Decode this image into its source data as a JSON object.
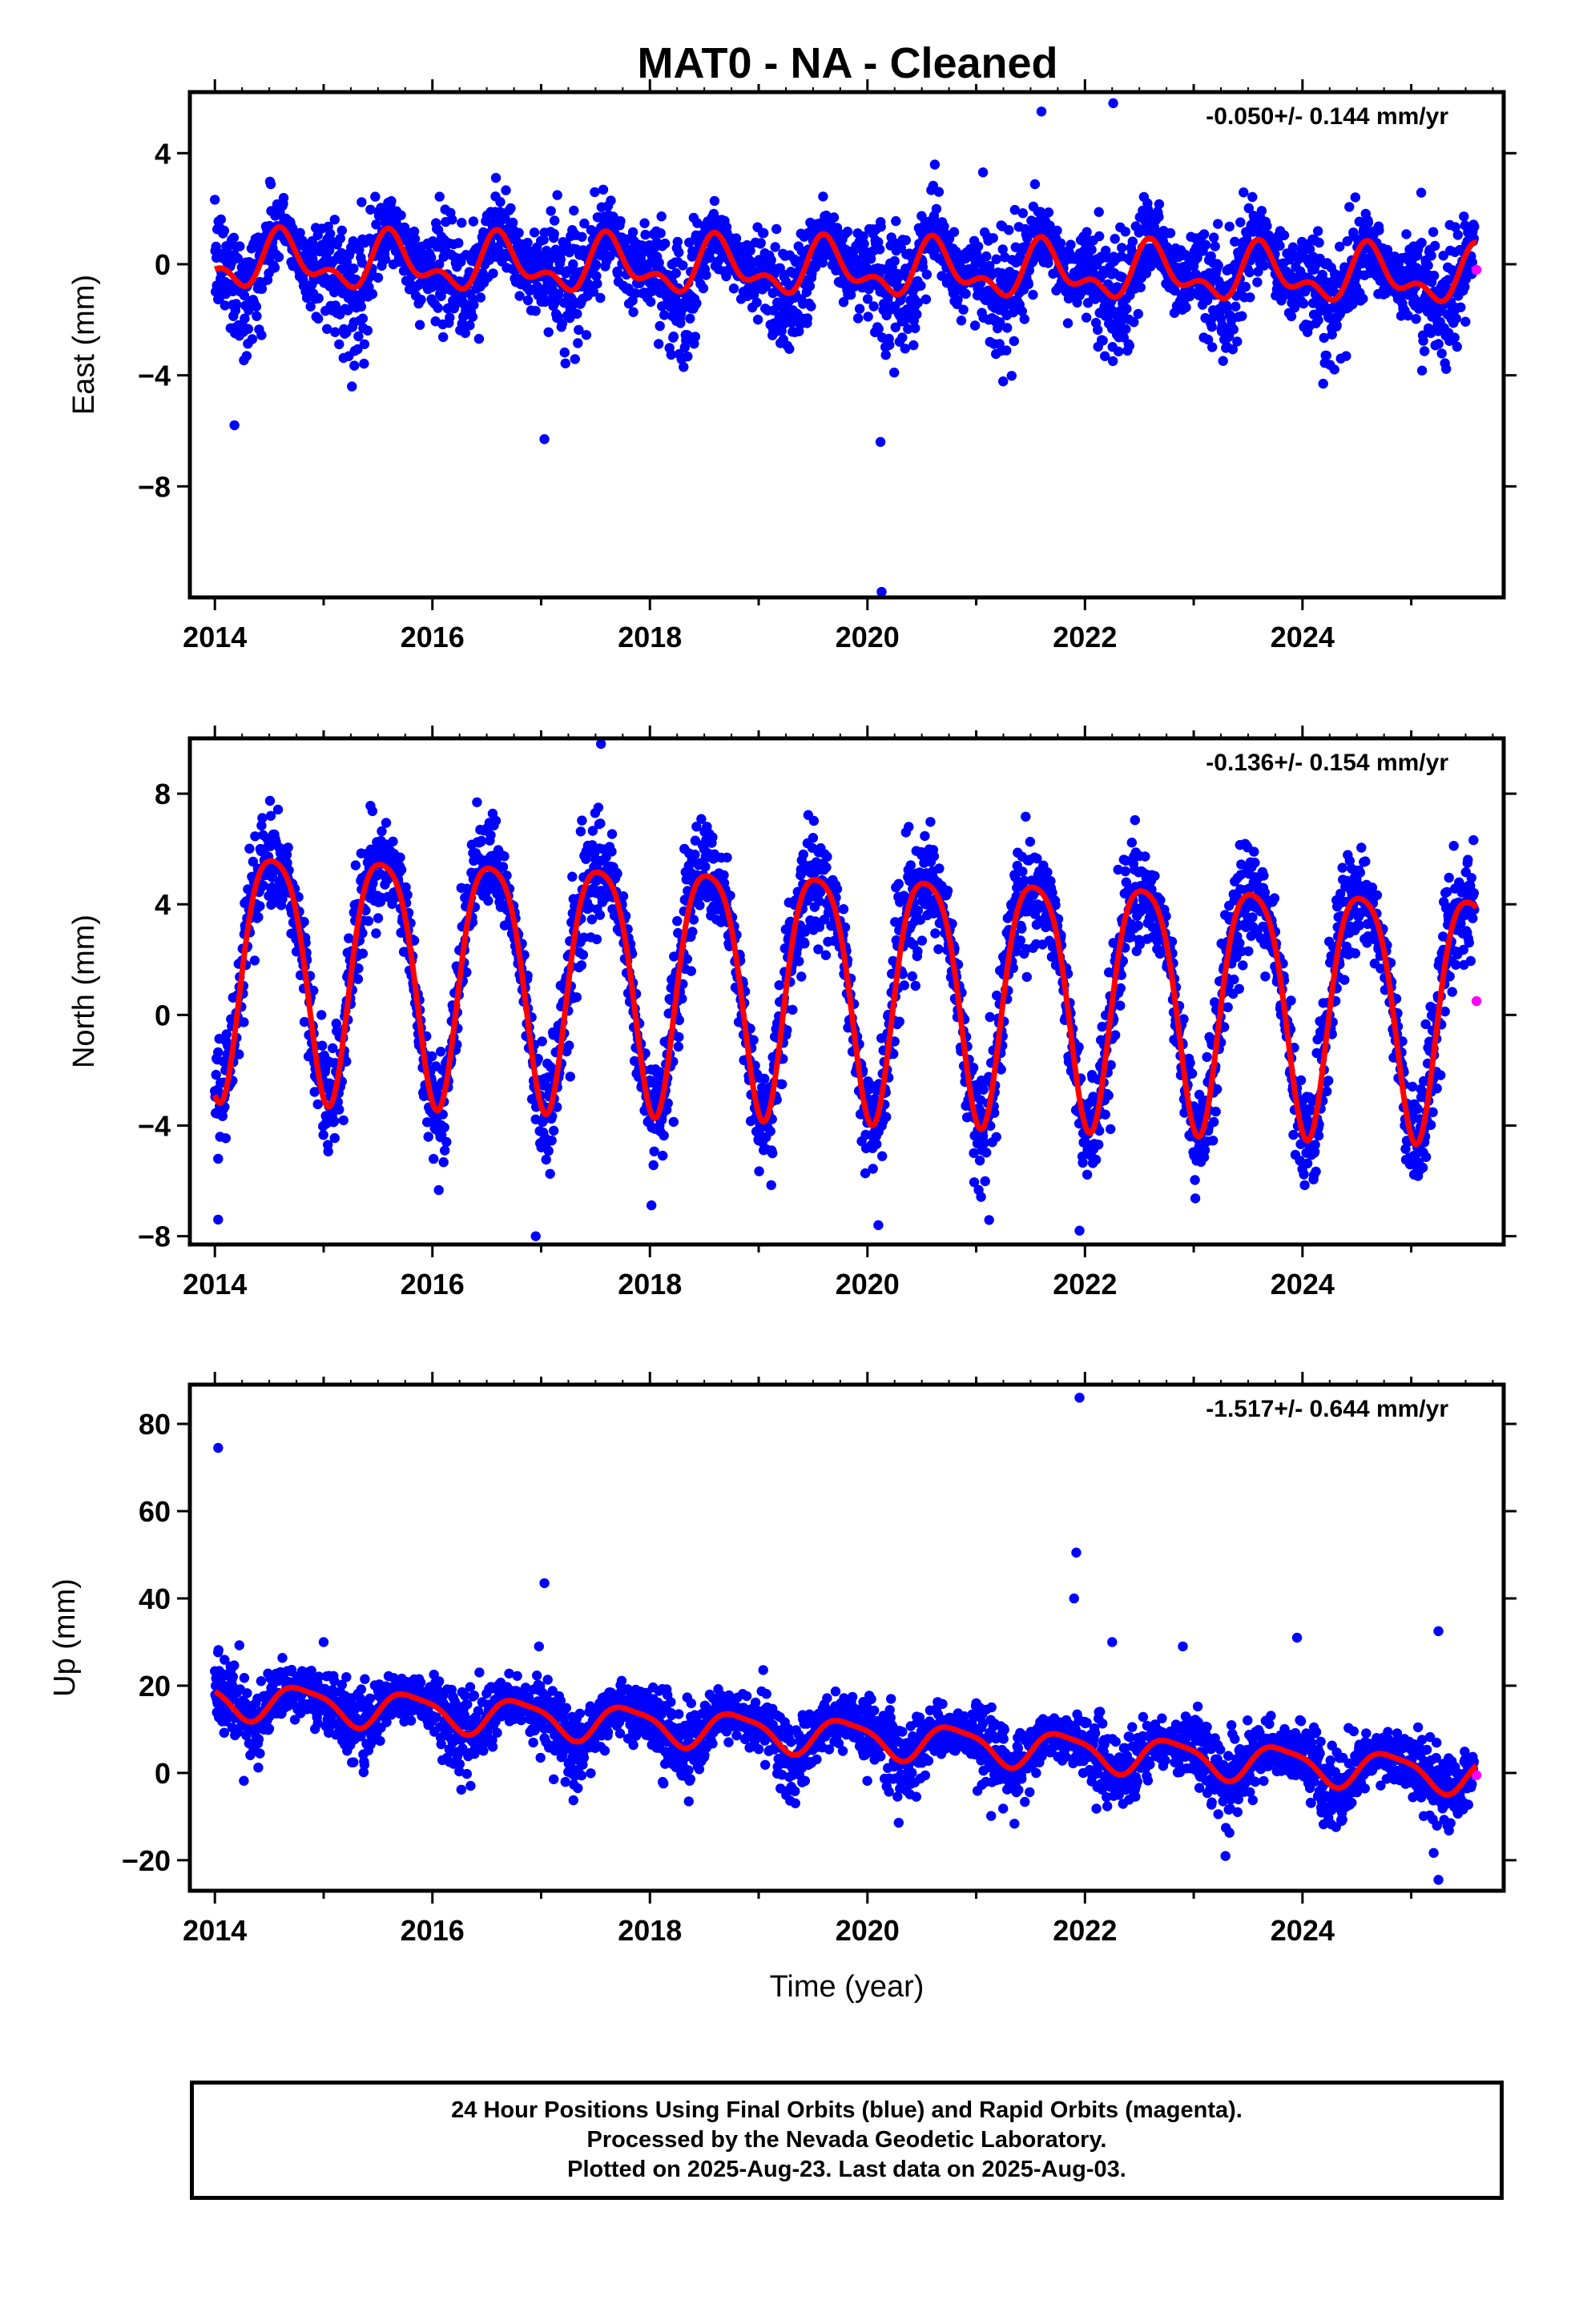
{
  "title": "MAT0  - NA - Cleaned",
  "colors": {
    "final": "#0000ff",
    "rapid": "#ff00ff",
    "model": "#ff0000",
    "frame": "#000000"
  },
  "footer": {
    "line1": "24 Hour Positions Using Final Orbits (blue) and Rapid Orbits (magenta).",
    "line2": "Processed by the Nevada Geodetic Laboratory.",
    "line3": "Plotted on 2025-Aug-23. Last data on 2025-Aug-03."
  },
  "chart_data": [
    {
      "type": "scatter",
      "component": "east",
      "ylabel": "East (mm)",
      "xlabel": "",
      "xlim": [
        2013.77,
        2025.85
      ],
      "ylim": [
        -12.0,
        6.2
      ],
      "xticks": [
        2014,
        2016,
        2018,
        2020,
        2022,
        2024
      ],
      "yticks": [
        4,
        0,
        -4,
        -8
      ],
      "ytick_labels": [
        "4",
        "0",
        "−4",
        "−8"
      ],
      "rate_text": "-0.050+/- 0.144 mm/yr",
      "model": {
        "offset": -0.2,
        "rate": -0.05,
        "amp1": 0.8,
        "amp2": 0.5,
        "phase1": 0.63,
        "phase2": 0.58
      },
      "scatter": {
        "sigma": 1.0,
        "seasonal": 1.2
      },
      "outliers": [
        [
          2014.18,
          -5.8
        ],
        [
          2017.03,
          -6.3
        ],
        [
          2020.12,
          -6.4
        ],
        [
          2020.13,
          -11.8
        ],
        [
          2022.26,
          5.8
        ],
        [
          2021.6,
          5.5
        ]
      ],
      "rapid_points": [
        [
          2025.6,
          -0.2
        ]
      ],
      "legend": "none"
    },
    {
      "type": "scatter",
      "component": "north",
      "ylabel": "North (mm)",
      "xlabel": "",
      "xlim": [
        2013.77,
        2025.85
      ],
      "ylim": [
        -8.3,
        10.0
      ],
      "xticks": [
        2014,
        2016,
        2018,
        2020,
        2022,
        2024
      ],
      "yticks": [
        8,
        4,
        0,
        -4,
        -8
      ],
      "ytick_labels": [
        "8",
        "4",
        "0",
        "−4",
        "−8"
      ],
      "rate_text": "-0.136+/- 0.154 mm/yr",
      "model": {
        "offset": 1.2,
        "rate": -0.136,
        "amp1": 4.4,
        "amp2": 0.8,
        "phase1": 0.54,
        "phase2": 0.3
      },
      "scatter": {
        "sigma": 1.1,
        "seasonal": 0.0
      },
      "outliers": [
        [
          2014.03,
          -7.4
        ],
        [
          2014.03,
          -5.2
        ],
        [
          2016.95,
          -8.0
        ],
        [
          2017.55,
          9.8
        ],
        [
          2020.1,
          -7.6
        ],
        [
          2021.95,
          -7.8
        ]
      ],
      "rapid_points": [
        [
          2025.6,
          0.5
        ]
      ],
      "legend": "none"
    },
    {
      "type": "scatter",
      "component": "up",
      "ylabel": "Up (mm)",
      "xlabel": "Time (year)",
      "xlim": [
        2013.77,
        2025.85
      ],
      "ylim": [
        -27.0,
        89.0
      ],
      "xticks": [
        2014,
        2016,
        2018,
        2020,
        2022,
        2024
      ],
      "yticks": [
        80,
        60,
        40,
        20,
        0,
        -20
      ],
      "ytick_labels": [
        "80",
        "60",
        "40",
        "20",
        "0",
        "−20"
      ],
      "rate_text": "-1.517+/- 0.644 mm/yr",
      "model": {
        "offset": 8.0,
        "rate": -1.517,
        "amp1": 4.0,
        "amp2": 1.0,
        "phase1": 0.8,
        "phase2": 0.6
      },
      "scatter": {
        "sigma": 4.3,
        "seasonal": 0.0
      },
      "outliers": [
        [
          2014.03,
          74.5
        ],
        [
          2017.03,
          43.5
        ],
        [
          2016.98,
          29.0
        ],
        [
          2021.95,
          86.0
        ],
        [
          2021.92,
          50.5
        ],
        [
          2021.9,
          40.0
        ],
        [
          2022.25,
          30.0
        ],
        [
          2022.9,
          29.0
        ],
        [
          2023.95,
          31.0
        ],
        [
          2025.25,
          32.5
        ],
        [
          2025.25,
          -24.5
        ],
        [
          2015.0,
          30.0
        ]
      ],
      "rapid_points": [
        [
          2025.6,
          -0.5
        ]
      ],
      "legend": "none"
    }
  ]
}
